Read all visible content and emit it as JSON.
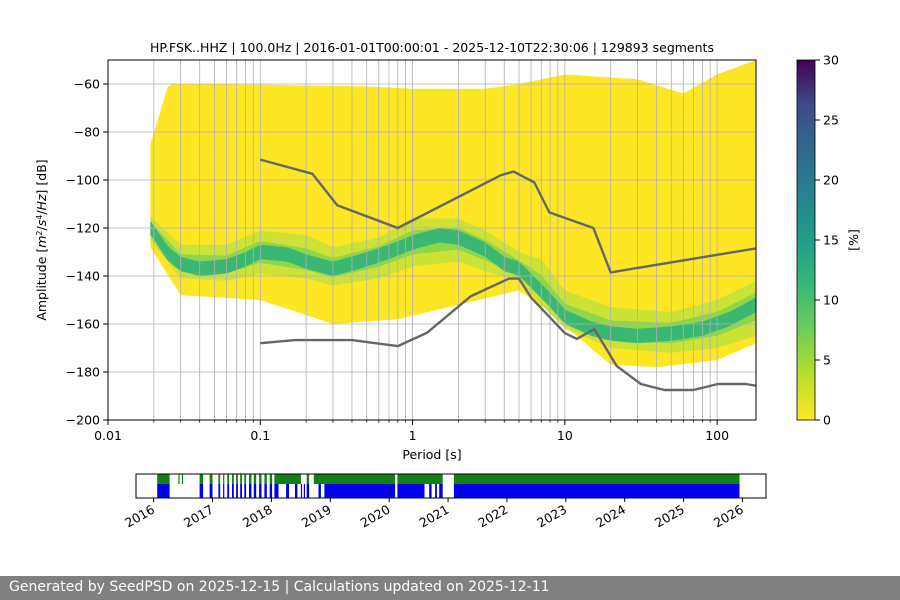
{
  "chart_data": [
    {
      "type": "heatmap",
      "title": "HP.FSK..HHZ | 100.0Hz | 2016-01-01T00:00:01 - 2025-12-10T22:30:06 | 129893 segments",
      "xlabel": "Period [s]",
      "ylabel_parts": [
        "Amplitude [",
        "m",
        "2",
        "/",
        "s",
        "4",
        "/",
        "Hz",
        "] [dB]"
      ],
      "x_scale": "log",
      "xlim": [
        0.01,
        180
      ],
      "ylim": [
        -200,
        -50
      ],
      "x_ticks": [
        0.01,
        0.1,
        1,
        10,
        100
      ],
      "x_tick_labels": [
        "0.01",
        "0.1",
        "1",
        "10",
        "100"
      ],
      "y_ticks": [
        -200,
        -180,
        -160,
        -140,
        -120,
        -100,
        -80,
        -60
      ],
      "y_tick_labels": [
        "−200",
        "−180",
        "−160",
        "−140",
        "−120",
        "−100",
        "−80",
        "−60"
      ],
      "grid": true,
      "colorbar": {
        "label": "[%]",
        "range": [
          0,
          30
        ],
        "ticks": [
          0,
          5,
          10,
          15,
          20,
          25,
          30
        ],
        "tick_labels": [
          "0",
          "5",
          "10",
          "15",
          "20",
          "25",
          "30"
        ],
        "colormap": "viridis"
      },
      "mode_curve": [
        [
          0.019,
          -120
        ],
        [
          0.02,
          -122
        ],
        [
          0.022,
          -126
        ],
        [
          0.025,
          -131
        ],
        [
          0.03,
          -135
        ],
        [
          0.04,
          -137
        ],
        [
          0.06,
          -136
        ],
        [
          0.08,
          -133
        ],
        [
          0.1,
          -130
        ],
        [
          0.15,
          -131
        ],
        [
          0.2,
          -134
        ],
        [
          0.3,
          -137
        ],
        [
          0.45,
          -134
        ],
        [
          0.7,
          -130
        ],
        [
          1,
          -126
        ],
        [
          1.5,
          -123
        ],
        [
          2,
          -124
        ],
        [
          3,
          -129
        ],
        [
          4,
          -135
        ],
        [
          5,
          -137
        ],
        [
          6,
          -142
        ],
        [
          8,
          -150
        ],
        [
          10,
          -157
        ],
        [
          15,
          -162
        ],
        [
          20,
          -164
        ],
        [
          30,
          -165
        ],
        [
          50,
          -164
        ],
        [
          80,
          -162
        ],
        [
          120,
          -158
        ],
        [
          180,
          -152
        ]
      ],
      "spread_upper": [
        [
          0.019,
          -115
        ],
        [
          0.03,
          -127
        ],
        [
          0.06,
          -127
        ],
        [
          0.1,
          -121
        ],
        [
          0.2,
          -123
        ],
        [
          0.3,
          -128
        ],
        [
          0.6,
          -124
        ],
        [
          1,
          -116
        ],
        [
          2,
          -116
        ],
        [
          3,
          -121
        ],
        [
          5,
          -130
        ],
        [
          7,
          -133
        ],
        [
          10,
          -146
        ],
        [
          20,
          -153
        ],
        [
          50,
          -155
        ],
        [
          100,
          -150
        ],
        [
          180,
          -142
        ]
      ],
      "spread_lower": [
        [
          0.019,
          -125
        ],
        [
          0.03,
          -141
        ],
        [
          0.06,
          -142
        ],
        [
          0.1,
          -139
        ],
        [
          0.2,
          -141
        ],
        [
          0.3,
          -144
        ],
        [
          0.6,
          -141
        ],
        [
          1,
          -136
        ],
        [
          2,
          -134
        ],
        [
          3,
          -138
        ],
        [
          5,
          -142
        ],
        [
          7,
          -152
        ],
        [
          10,
          -162
        ],
        [
          20,
          -170
        ],
        [
          50,
          -172
        ],
        [
          100,
          -170
        ],
        [
          180,
          -165
        ]
      ],
      "envelope_upper": [
        [
          0.019,
          -85
        ],
        [
          0.025,
          -60
        ],
        [
          0.05,
          -60
        ],
        [
          0.5,
          -61
        ],
        [
          1,
          -62
        ],
        [
          3,
          -62
        ],
        [
          5,
          -60
        ],
        [
          10,
          -56
        ],
        [
          30,
          -58
        ],
        [
          60,
          -64
        ],
        [
          100,
          -56
        ],
        [
          180,
          -50
        ]
      ],
      "envelope_lower": [
        [
          0.019,
          -128
        ],
        [
          0.03,
          -148
        ],
        [
          0.1,
          -150
        ],
        [
          0.3,
          -160
        ],
        [
          0.8,
          -158
        ],
        [
          2,
          -152
        ],
        [
          5,
          -146
        ],
        [
          8,
          -155
        ],
        [
          12,
          -165
        ],
        [
          20,
          -177
        ],
        [
          40,
          -178
        ],
        [
          100,
          -175
        ],
        [
          180,
          -168
        ]
      ],
      "noise_model_high": [
        [
          0.1,
          -91.5
        ],
        [
          0.22,
          -97.4
        ],
        [
          0.32,
          -110.5
        ],
        [
          0.8,
          -120
        ],
        [
          3.8,
          -98
        ],
        [
          4.6,
          -96.5
        ],
        [
          6.3,
          -101
        ],
        [
          7.9,
          -113.5
        ],
        [
          15.4,
          -120
        ],
        [
          20,
          -138.5
        ],
        [
          180,
          -128.5
        ]
      ],
      "noise_model_low": [
        [
          0.1,
          -168
        ],
        [
          0.17,
          -166.7
        ],
        [
          0.4,
          -166.7
        ],
        [
          0.8,
          -169.2
        ],
        [
          1.24,
          -163.7
        ],
        [
          2.4,
          -148.5
        ],
        [
          4.3,
          -141.1
        ],
        [
          5,
          -141.1
        ],
        [
          6,
          -149
        ],
        [
          10,
          -163.8
        ],
        [
          12,
          -166.2
        ],
        [
          15.6,
          -162.1
        ],
        [
          21.9,
          -177.5
        ],
        [
          31.6,
          -185
        ],
        [
          45,
          -187.5
        ],
        [
          70,
          -187.5
        ],
        [
          101,
          -185
        ],
        [
          154,
          -185
        ],
        [
          180,
          -185.7
        ]
      ]
    },
    {
      "type": "timeline",
      "x_tick_labels": [
        "2016",
        "2017",
        "2018",
        "2019",
        "2020",
        "2021",
        "2022",
        "2023",
        "2024",
        "2025",
        "2026"
      ],
      "green_row": [
        [
          2016.06,
          2016.27
        ],
        [
          2016.42,
          2016.44
        ],
        [
          2016.48,
          2016.5
        ],
        [
          2016.78,
          2016.84
        ],
        [
          2016.95,
          2017.0
        ],
        [
          2017.1,
          2017.13
        ],
        [
          2017.18,
          2017.2
        ],
        [
          2017.25,
          2017.28
        ],
        [
          2017.33,
          2017.36
        ],
        [
          2017.4,
          2017.43
        ],
        [
          2017.47,
          2017.5
        ],
        [
          2017.54,
          2017.57
        ],
        [
          2017.62,
          2017.66
        ],
        [
          2017.7,
          2017.74
        ],
        [
          2017.79,
          2017.83
        ],
        [
          2017.88,
          2017.92
        ],
        [
          2017.97,
          2018.01
        ],
        [
          2018.05,
          2018.5
        ],
        [
          2018.6,
          2018.64
        ],
        [
          2018.72,
          2020.1
        ],
        [
          2020.14,
          2020.91
        ],
        [
          2021.1,
          2025.95
        ]
      ],
      "blue_row": [
        [
          2016.06,
          2016.27
        ],
        [
          2016.78,
          2016.84
        ],
        [
          2016.95,
          2017.0
        ],
        [
          2017.1,
          2017.13
        ],
        [
          2017.18,
          2017.2
        ],
        [
          2017.25,
          2017.28
        ],
        [
          2017.33,
          2017.36
        ],
        [
          2017.4,
          2017.43
        ],
        [
          2017.47,
          2017.5
        ],
        [
          2017.54,
          2017.57
        ],
        [
          2017.62,
          2017.66
        ],
        [
          2017.7,
          2017.74
        ],
        [
          2017.79,
          2017.83
        ],
        [
          2017.88,
          2017.92
        ],
        [
          2017.97,
          2018.01
        ],
        [
          2018.05,
          2018.12
        ],
        [
          2018.25,
          2018.3
        ],
        [
          2018.4,
          2018.44
        ],
        [
          2018.5,
          2018.52
        ],
        [
          2018.55,
          2018.57
        ],
        [
          2018.6,
          2018.64
        ],
        [
          2018.8,
          2018.84
        ],
        [
          2018.9,
          2020.1
        ],
        [
          2020.14,
          2020.6
        ],
        [
          2020.68,
          2020.72
        ],
        [
          2020.78,
          2020.81
        ],
        [
          2020.85,
          2020.91
        ],
        [
          2021.1,
          2025.95
        ]
      ]
    }
  ],
  "footer": {
    "text": "Generated by SeedPSD on 2025-12-15 | Calculations updated on 2025-12-11"
  }
}
